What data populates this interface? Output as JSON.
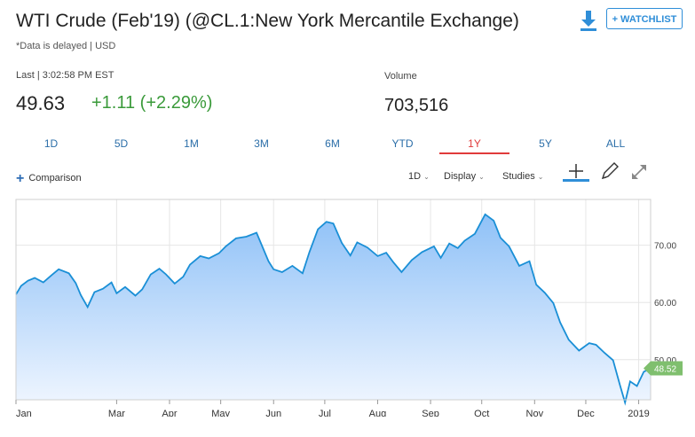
{
  "header": {
    "title": "WTI Crude (Feb'19) (@CL.1:New York Mercantile Exchange)",
    "delayed_note": "*Data is delayed | USD",
    "watchlist_label": "+ WATCHLIST",
    "download_icon": "download-icon"
  },
  "quote": {
    "last_label": "Last | 3:02:58 PM EST",
    "last_value": "49.63",
    "change": "+1.11 (+2.29%)",
    "volume_label": "Volume",
    "volume_value": "703,516"
  },
  "tabs": [
    {
      "label": "1D",
      "active": false
    },
    {
      "label": "5D",
      "active": false
    },
    {
      "label": "1M",
      "active": false
    },
    {
      "label": "3M",
      "active": false
    },
    {
      "label": "6M",
      "active": false
    },
    {
      "label": "YTD",
      "active": false
    },
    {
      "label": "1Y",
      "active": true
    },
    {
      "label": "5Y",
      "active": false
    },
    {
      "label": "ALL",
      "active": false
    }
  ],
  "toolbar": {
    "comparison_label": "Comparison",
    "interval_label": "1D",
    "display_label": "Display",
    "studies_label": "Studies",
    "icons": [
      "crosshair-icon",
      "pencil-icon",
      "expand-icon"
    ]
  },
  "colors": {
    "line": "#1a8fd6",
    "fill_top": "#8fc1f7",
    "fill_bottom": "#eef5ff",
    "positive": "#3a9a3a",
    "active_tab": "#e03b3b",
    "last_badge": "#7fbf6e"
  },
  "chart_data": {
    "type": "area",
    "ylim": [
      43,
      78
    ],
    "y_ticks": [
      50,
      60,
      70
    ],
    "y_tick_labels": [
      "50.00",
      "60.00",
      "70.00"
    ],
    "x_tick_labels": [
      "Jan",
      "Mar",
      "Apr",
      "May",
      "Jun",
      "Jul",
      "Aug",
      "Sep",
      "Oct",
      "Nov",
      "Dec",
      "2019"
    ],
    "x_tick_dates": [
      "2018-01-01",
      "2018-03-01",
      "2018-04-01",
      "2018-05-01",
      "2018-06-01",
      "2018-07-01",
      "2018-08-01",
      "2018-09-01",
      "2018-10-01",
      "2018-11-01",
      "2018-12-01",
      "2019-01-01"
    ],
    "grid": true,
    "last_price_label": "48.52",
    "series": [
      {
        "x": [
          "2018-01-01",
          "2018-01-04",
          "2018-01-08",
          "2018-01-12",
          "2018-01-17",
          "2018-01-22",
          "2018-01-26",
          "2018-02-01",
          "2018-02-05",
          "2018-02-08",
          "2018-02-12",
          "2018-02-16",
          "2018-02-21",
          "2018-02-26",
          "2018-03-01",
          "2018-03-06",
          "2018-03-12",
          "2018-03-16",
          "2018-03-21",
          "2018-03-26",
          "2018-03-30",
          "2018-04-04",
          "2018-04-09",
          "2018-04-13",
          "2018-04-19",
          "2018-04-24",
          "2018-04-30",
          "2018-05-04",
          "2018-05-10",
          "2018-05-16",
          "2018-05-22",
          "2018-05-29",
          "2018-06-01",
          "2018-06-06",
          "2018-06-12",
          "2018-06-18",
          "2018-06-22",
          "2018-06-27",
          "2018-07-02",
          "2018-07-06",
          "2018-07-11",
          "2018-07-16",
          "2018-07-20",
          "2018-07-26",
          "2018-08-01",
          "2018-08-06",
          "2018-08-10",
          "2018-08-15",
          "2018-08-21",
          "2018-08-27",
          "2018-09-03",
          "2018-09-07",
          "2018-09-12",
          "2018-09-17",
          "2018-09-21",
          "2018-09-27",
          "2018-10-03",
          "2018-10-08",
          "2018-10-12",
          "2018-10-17",
          "2018-10-23",
          "2018-10-29",
          "2018-11-02",
          "2018-11-07",
          "2018-11-12",
          "2018-11-16",
          "2018-11-21",
          "2018-11-27",
          "2018-12-03",
          "2018-12-07",
          "2018-12-12",
          "2018-12-17",
          "2018-12-21",
          "2018-12-24",
          "2018-12-27",
          "2018-12-31",
          "2019-01-04",
          "2019-01-08"
        ],
        "y": [
          61.4,
          62.9,
          63.8,
          64.3,
          63.5,
          64.8,
          65.8,
          65.1,
          63.4,
          61.3,
          59.2,
          61.8,
          62.4,
          63.5,
          61.6,
          62.7,
          61.2,
          62.3,
          64.9,
          65.9,
          64.9,
          63.3,
          64.5,
          66.6,
          68.1,
          67.7,
          68.6,
          69.8,
          71.2,
          71.5,
          72.2,
          67.2,
          65.8,
          65.3,
          66.4,
          65.1,
          68.8,
          72.8,
          74.1,
          73.8,
          70.4,
          68.2,
          70.5,
          69.6,
          68.1,
          68.7,
          67.1,
          65.3,
          67.4,
          68.8,
          69.8,
          67.8,
          70.3,
          69.5,
          70.8,
          72.0,
          75.4,
          74.3,
          71.3,
          69.8,
          66.4,
          67.2,
          63.1,
          61.7,
          59.9,
          56.5,
          53.5,
          51.6,
          52.9,
          52.6,
          51.2,
          49.9,
          45.6,
          42.5,
          46.2,
          45.4,
          47.9,
          48.5
        ]
      }
    ]
  }
}
